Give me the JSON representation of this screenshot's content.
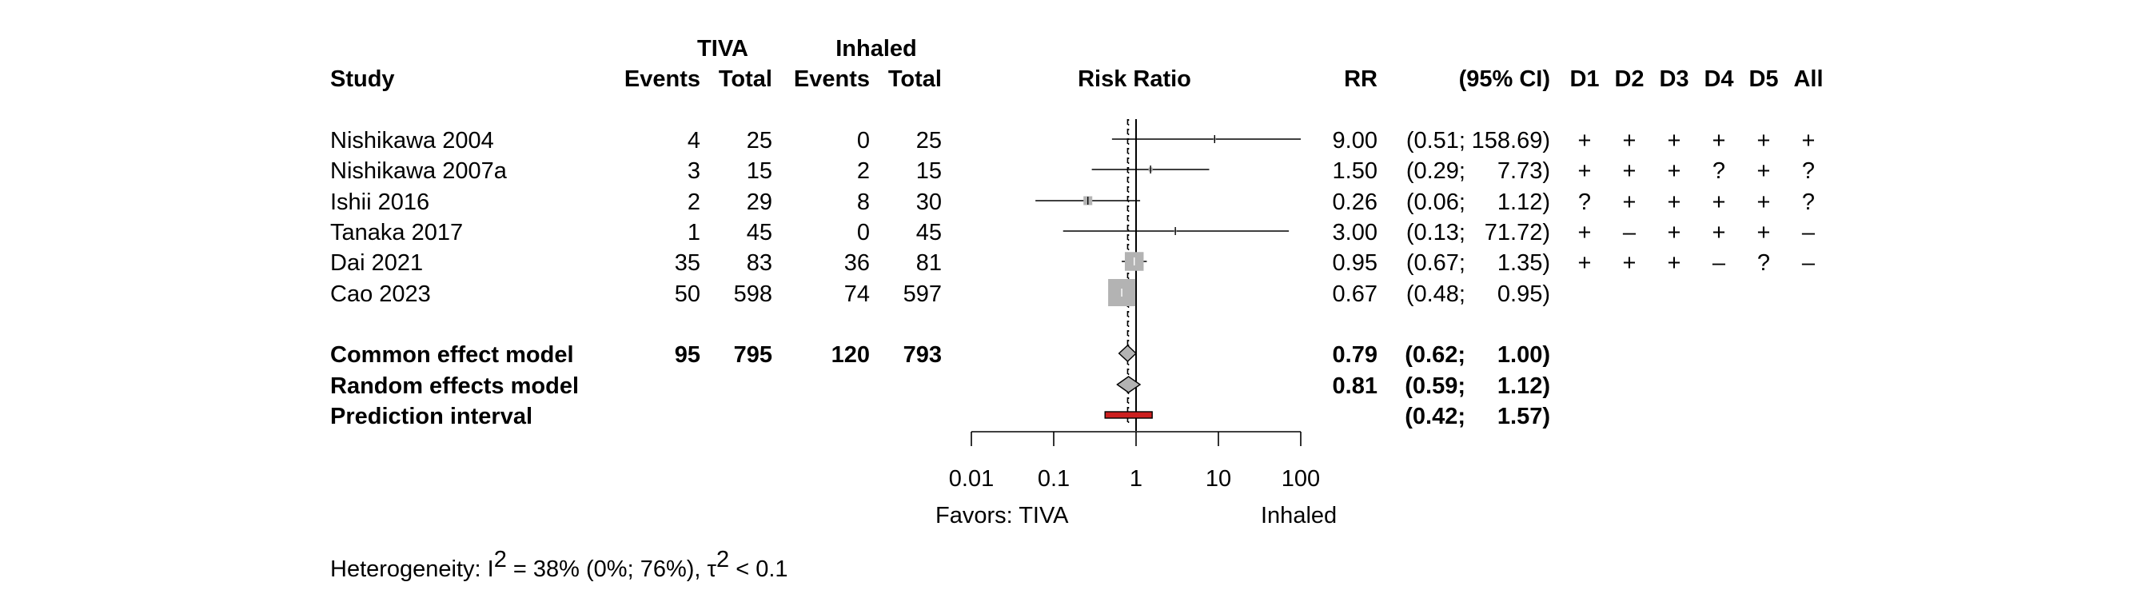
{
  "chart_data": {
    "type": "forest",
    "scale": "log",
    "xlim": [
      0.01,
      100
    ],
    "null_value": 1,
    "header": {
      "group1": "TIVA",
      "group2": "Inhaled",
      "study": "Study",
      "events1": "Events",
      "total1": "Total",
      "events2": "Events",
      "total2": "Total",
      "effect": "Risk Ratio",
      "rr": "RR",
      "ci": "(95% CI)",
      "domains": [
        "D1",
        "D2",
        "D3",
        "D4",
        "D5",
        "All"
      ]
    },
    "studies": [
      {
        "name": "Nishikawa 2004",
        "events1": "4",
        "total1": "25",
        "events2": "0",
        "total2": "25",
        "rr": 9.0,
        "lower": 0.51,
        "upper": 158.69,
        "rr_text": "9.00",
        "ci_lo_text": "(0.51;",
        "ci_hi_text": "158.69)",
        "weight": 0.4,
        "rob": [
          "+",
          "+",
          "+",
          "+",
          "+",
          "+"
        ]
      },
      {
        "name": "Nishikawa 2007a",
        "events1": "3",
        "total1": "15",
        "events2": "2",
        "total2": "15",
        "rr": 1.5,
        "lower": 0.29,
        "upper": 7.73,
        "rr_text": "1.50",
        "ci_lo_text": "(0.29;",
        "ci_hi_text": "7.73)",
        "weight": 1.4,
        "rob": [
          "+",
          "+",
          "+",
          "?",
          "+",
          "?"
        ]
      },
      {
        "name": "Ishii 2016",
        "events1": "2",
        "total1": "29",
        "events2": "8",
        "total2": "30",
        "rr": 0.26,
        "lower": 0.06,
        "upper": 1.12,
        "rr_text": "0.26",
        "ci_lo_text": "(0.06;",
        "ci_hi_text": "1.12)",
        "weight": 6.5,
        "rob": [
          "?",
          "+",
          "+",
          "+",
          "+",
          "?"
        ]
      },
      {
        "name": "Tanaka 2017",
        "events1": "1",
        "total1": "45",
        "events2": "0",
        "total2": "45",
        "rr": 3.0,
        "lower": 0.13,
        "upper": 71.72,
        "rr_text": "3.00",
        "ci_lo_text": "(0.13;",
        "ci_hi_text": "71.72)",
        "weight": 0.4,
        "rob": [
          "+",
          "–",
          "+",
          "+",
          "+",
          "–"
        ]
      },
      {
        "name": "Dai 2021",
        "events1": "35",
        "total1": "83",
        "events2": "36",
        "total2": "81",
        "rr": 0.95,
        "lower": 0.67,
        "upper": 1.35,
        "rr_text": "0.95",
        "ci_lo_text": "(0.67;",
        "ci_hi_text": "1.35)",
        "weight": 29.5,
        "rob": [
          "+",
          "+",
          "+",
          "–",
          "?",
          "–"
        ]
      },
      {
        "name": "Cao 2023",
        "events1": "50",
        "total1": "598",
        "events2": "74",
        "total2": "597",
        "rr": 0.67,
        "lower": 0.48,
        "upper": 0.95,
        "rr_text": "0.67",
        "ci_lo_text": "(0.48;",
        "ci_hi_text": "0.95)",
        "weight": 61.8,
        "rob": [
          "",
          "",
          "",
          "",
          "",
          ""
        ]
      }
    ],
    "common": {
      "name": "Common effect model",
      "events1": "95",
      "total1": "795",
      "events2": "120",
      "total2": "793",
      "rr": 0.79,
      "lower": 0.62,
      "upper": 1.0,
      "rr_text": "0.79",
      "ci_lo_text": "(0.62;",
      "ci_hi_text": "1.00)"
    },
    "random": {
      "name": "Random effects model",
      "rr": 0.81,
      "lower": 0.59,
      "upper": 1.12,
      "rr_text": "0.81",
      "ci_lo_text": "(0.59;",
      "ci_hi_text": "1.12)"
    },
    "prediction": {
      "name": "Prediction interval",
      "lower": 0.42,
      "upper": 1.57,
      "ci_lo_text": "(0.42;",
      "ci_hi_text": "1.57)"
    },
    "x_ticks": [
      {
        "value": 0.01,
        "label": "0.01"
      },
      {
        "value": 0.1,
        "label": "0.1"
      },
      {
        "value": 1,
        "label": "1"
      },
      {
        "value": 10,
        "label": "10"
      },
      {
        "value": 100,
        "label": "100"
      }
    ],
    "favors_left": "Favors: TIVA",
    "favors_right": "Inhaled",
    "heterogeneity": {
      "prefix": "Heterogeneity: ",
      "i_symbol": "I",
      "i_exp": "2",
      "i_value": " = 38% (0%; 76%), ",
      "tau_symbol": "τ",
      "tau_exp": "2",
      "tau_value": " < 0.1"
    },
    "colors": {
      "square": "#b3b3b3",
      "diamond": "#b3b3b3",
      "prediction": "#cc1f1f",
      "line": "#000000"
    }
  }
}
